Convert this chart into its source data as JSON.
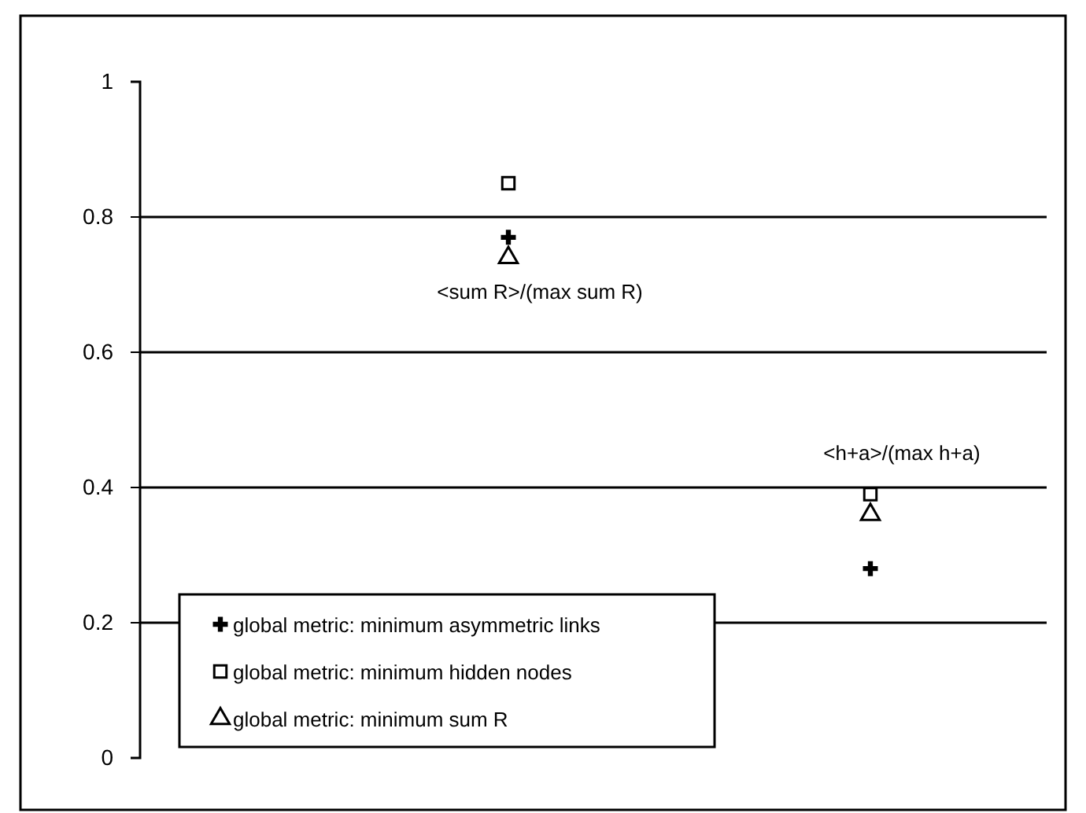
{
  "chart_data": {
    "type": "scatter",
    "categories": [
      null,
      null
    ],
    "series": [
      {
        "name": "global metric: minimum asymmetric links",
        "color": "#000000",
        "marker": "cross",
        "values": [
          0.77,
          0.28
        ]
      },
      {
        "name": "global metric: minimum hidden nodes",
        "color": "#000000",
        "marker": "square",
        "values": [
          0.85,
          0.39
        ]
      },
      {
        "name": "global metric: minimum sum R",
        "color": "#000000",
        "marker": "triangle",
        "values": [
          0.74,
          0.36
        ]
      }
    ],
    "annotations": [
      "<sum R>/(max sum R)",
      "<h+a>/(max h+a)"
    ],
    "ylim": [
      0,
      1
    ],
    "yticks": [
      0,
      0.2,
      0.4,
      0.6,
      0.8,
      1
    ],
    "grid": "y",
    "legend": "bottom left",
    "tick_labels": "y"
  }
}
